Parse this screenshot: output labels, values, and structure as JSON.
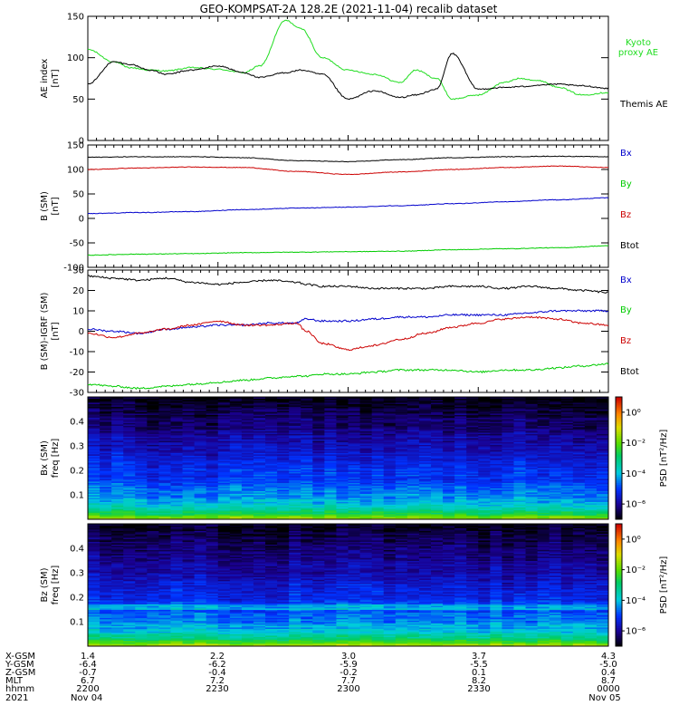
{
  "title": "GEO-KOMPSAT-2A 128.2E (2021-11-04) recalib dataset",
  "colors": {
    "black": "#000000",
    "red": "#cc0000",
    "green": "#00cc00",
    "blue": "#0000cc",
    "kyoto_green": "#22dd22"
  },
  "chart_data": [
    {
      "id": "ae",
      "type": "line",
      "ylabel_lines": [
        "AE index",
        "[nT]"
      ],
      "ylim": [
        0,
        150
      ],
      "yticks": [
        0,
        50,
        100,
        150
      ],
      "grid": false,
      "legend_position": "right",
      "x": [
        0,
        0.05,
        0.08,
        0.12,
        0.15,
        0.2,
        0.25,
        0.3,
        0.33,
        0.38,
        0.41,
        0.45,
        0.5,
        0.55,
        0.6,
        0.63,
        0.67,
        0.7,
        0.75,
        0.8,
        0.83,
        0.87,
        0.9,
        0.95,
        1.0
      ],
      "series": [
        {
          "name": "Kyoto proxy AE",
          "color": "kyoto_green",
          "values": [
            110,
            95,
            88,
            85,
            84,
            88,
            86,
            82,
            90,
            145,
            135,
            100,
            85,
            80,
            70,
            85,
            75,
            50,
            55,
            70,
            75,
            72,
            65,
            55,
            58
          ]
        },
        {
          "name": "Themis AE",
          "color": "black",
          "values": [
            68,
            95,
            92,
            85,
            80,
            85,
            90,
            82,
            76,
            82,
            85,
            80,
            50,
            60,
            52,
            55,
            62,
            105,
            62,
            64,
            65,
            67,
            68,
            66,
            63
          ]
        }
      ]
    },
    {
      "id": "bsm",
      "type": "line",
      "ylabel_lines": [
        "B (SM)",
        "[nT]"
      ],
      "ylim": [
        -100,
        150
      ],
      "yticks": [
        -100,
        -50,
        0,
        50,
        100,
        150
      ],
      "grid": false,
      "legend_position": "right",
      "x": [
        0,
        0.1,
        0.2,
        0.3,
        0.4,
        0.5,
        0.6,
        0.7,
        0.8,
        0.9,
        1.0
      ],
      "series": [
        {
          "name": "Bx",
          "color": "blue",
          "values": [
            10,
            12,
            14,
            18,
            21,
            23,
            26,
            30,
            34,
            38,
            42
          ]
        },
        {
          "name": "By",
          "color": "green",
          "values": [
            -75,
            -73,
            -72,
            -70,
            -69,
            -68,
            -67,
            -64,
            -62,
            -60,
            -56
          ]
        },
        {
          "name": "Bz",
          "color": "red",
          "values": [
            100,
            103,
            105,
            104,
            96,
            90,
            95,
            100,
            104,
            107,
            104
          ]
        },
        {
          "name": "Btot",
          "color": "black",
          "values": [
            125,
            126,
            126,
            124,
            118,
            116,
            120,
            124,
            126,
            127,
            126
          ]
        }
      ]
    },
    {
      "id": "bres",
      "type": "line",
      "ylabel_lines": [
        "B (SM)-IGRF (SM)",
        "[nT]"
      ],
      "ylim": [
        -30,
        30
      ],
      "yticks": [
        -30,
        -20,
        -10,
        0,
        10,
        20,
        30
      ],
      "grid": false,
      "legend_position": "right",
      "x": [
        0,
        0.05,
        0.1,
        0.15,
        0.2,
        0.25,
        0.3,
        0.35,
        0.4,
        0.42,
        0.45,
        0.5,
        0.55,
        0.6,
        0.65,
        0.7,
        0.75,
        0.8,
        0.85,
        0.9,
        0.95,
        1.0
      ],
      "series": [
        {
          "name": "Bx",
          "color": "blue",
          "values": [
            1,
            0,
            -1,
            1,
            2,
            3,
            3,
            4,
            4,
            6,
            5,
            5,
            6,
            7,
            7,
            8,
            8,
            8,
            9,
            10,
            10,
            10
          ]
        },
        {
          "name": "By",
          "color": "green",
          "values": [
            -26,
            -27,
            -28,
            -27,
            -26,
            -25,
            -24,
            -23,
            -22,
            -22,
            -21,
            -21,
            -20,
            -19,
            -19,
            -19,
            -20,
            -19,
            -19,
            -18,
            -17,
            -16
          ]
        },
        {
          "name": "Bz",
          "color": "red",
          "values": [
            -1,
            -3,
            -1,
            1,
            3,
            5,
            3,
            3,
            4,
            0,
            -6,
            -9,
            -7,
            -4,
            -1,
            2,
            4,
            6,
            7,
            6,
            4,
            3
          ]
        },
        {
          "name": "Btot",
          "color": "black",
          "values": [
            27,
            26,
            25,
            26,
            24,
            23,
            24,
            25,
            24,
            23,
            22,
            22,
            21,
            21,
            21,
            22,
            22,
            21,
            22,
            21,
            20,
            19
          ]
        }
      ]
    },
    {
      "id": "specbx",
      "type": "heatmap",
      "ylabel_lines": [
        "Bx (SM)",
        "freq [Hz]"
      ],
      "ylim": [
        0,
        0.5
      ],
      "yticks": [
        0.1,
        0.2,
        0.3,
        0.4
      ],
      "colorbar_label": "PSD [nT²/Hz]",
      "colorbar_ticks": [
        "10⁰",
        "10⁻²",
        "10⁻⁴",
        "10⁻⁶"
      ],
      "colorbar_range_log10": [
        -7,
        1
      ]
    },
    {
      "id": "specbz",
      "type": "heatmap",
      "ylabel_lines": [
        "Bz (SM)",
        "freq [Hz]"
      ],
      "ylim": [
        0,
        0.5
      ],
      "yticks": [
        0.1,
        0.2,
        0.3,
        0.4
      ],
      "colorbar_label": "PSD [nT²/Hz]",
      "colorbar_ticks": [
        "10⁰",
        "10⁻²",
        "10⁻⁴",
        "10⁻⁶"
      ],
      "colorbar_range_log10": [
        -7,
        1
      ]
    }
  ],
  "ephemeris": {
    "rows": [
      {
        "label": "X-GSM",
        "values": [
          "1.4",
          "2.2",
          "3.0",
          "3.7",
          "4.3"
        ]
      },
      {
        "label": "Y-GSM",
        "values": [
          "-6.4",
          "-6.2",
          "-5.9",
          "-5.5",
          "-5.0"
        ]
      },
      {
        "label": "Z-GSM",
        "values": [
          "-0.7",
          "-0.4",
          "-0.2",
          "0.1",
          "0.4"
        ]
      },
      {
        "label": "MLT",
        "values": [
          "6.7",
          "7.2",
          "7.7",
          "8.2",
          "8.7"
        ]
      },
      {
        "label": "hhmm",
        "values": [
          "2200",
          "2230",
          "2300",
          "2330",
          "0000"
        ]
      },
      {
        "label": "2021",
        "values": [
          "Nov 04",
          "",
          "",
          "",
          "Nov 05"
        ]
      }
    ]
  }
}
